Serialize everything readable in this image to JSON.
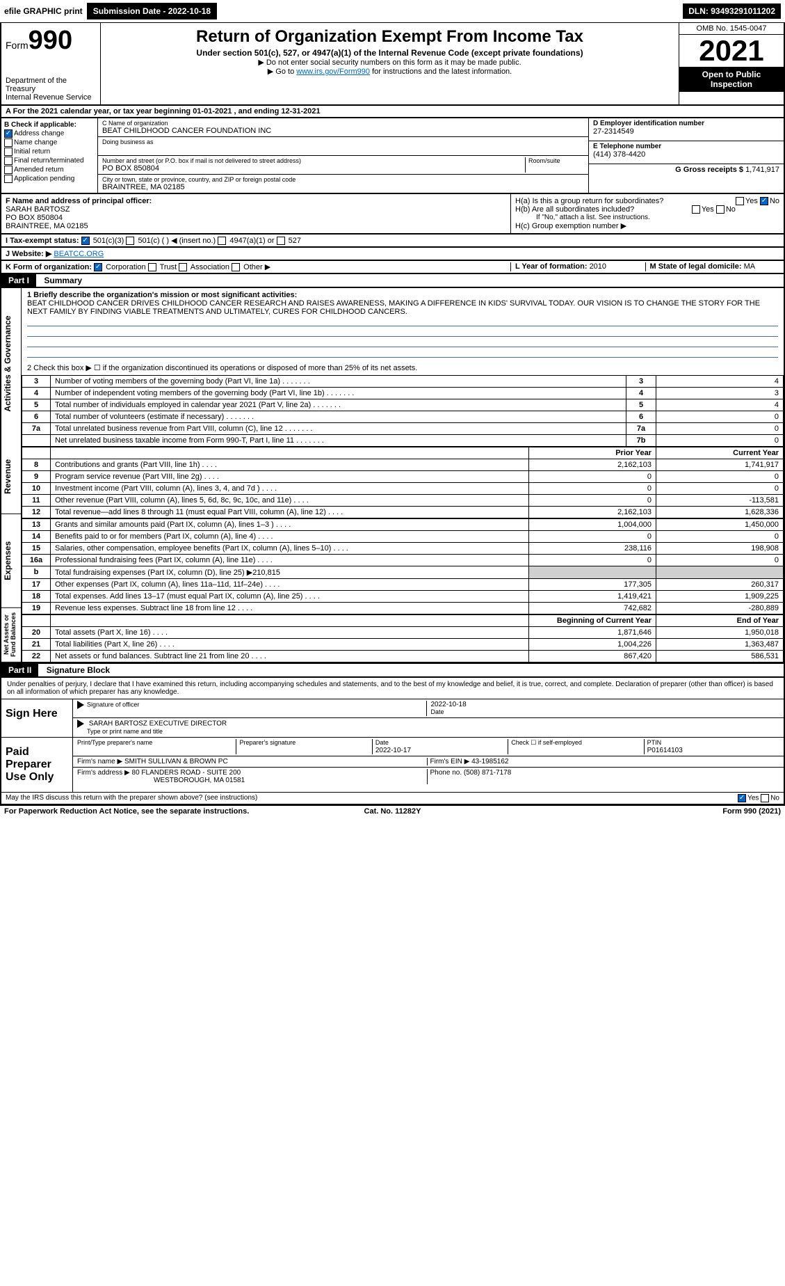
{
  "topbar": {
    "efile": "efile GRAPHIC print",
    "submission_label": "Submission Date - 2022-10-18",
    "dln": "DLN: 93493291011202"
  },
  "header": {
    "form_word": "Form",
    "form_num": "990",
    "dept": "Department of the Treasury",
    "irs": "Internal Revenue Service",
    "title": "Return of Organization Exempt From Income Tax",
    "sub": "Under section 501(c), 527, or 4947(a)(1) of the Internal Revenue Code (except private foundations)",
    "note1": "▶ Do not enter social security numbers on this form as it may be made public.",
    "note2_pre": "▶ Go to ",
    "note2_link": "www.irs.gov/Form990",
    "note2_post": " for instructions and the latest information.",
    "omb": "OMB No. 1545-0047",
    "year": "2021",
    "open": "Open to Public Inspection"
  },
  "line_a": "A For the 2021 calendar year, or tax year beginning 01-01-2021    , and ending 12-31-2021",
  "box_b": {
    "label": "B Check if applicable:",
    "items": [
      {
        "txt": "Address change",
        "checked": true
      },
      {
        "txt": "Name change",
        "checked": false
      },
      {
        "txt": "Initial return",
        "checked": false
      },
      {
        "txt": "Final return/terminated",
        "checked": false
      },
      {
        "txt": "Amended return",
        "checked": false
      },
      {
        "txt": "Application pending",
        "checked": false
      }
    ]
  },
  "box_c": {
    "name_lbl": "C Name of organization",
    "name": "BEAT CHILDHOOD CANCER FOUNDATION INC",
    "dba_lbl": "Doing business as",
    "dba": "",
    "addr_lbl": "Number and street (or P.O. box if mail is not delivered to street address)",
    "room_lbl": "Room/suite",
    "addr": "PO BOX 850804",
    "city_lbl": "City or town, state or province, country, and ZIP or foreign postal code",
    "city": "BRAINTREE, MA  02185"
  },
  "box_de": {
    "d_lbl": "D Employer identification number",
    "d_val": "27-2314549",
    "e_lbl": "E Telephone number",
    "e_val": "(414) 378-4420",
    "g_lbl": "G Gross receipts $ ",
    "g_val": "1,741,917"
  },
  "box_f": {
    "lbl": "F Name and address of principal officer:",
    "name": "SARAH BARTOSZ",
    "addr1": "PO BOX 850804",
    "addr2": "BRAINTREE, MA  02185"
  },
  "box_h": {
    "a_lbl": "H(a)  Is this a group return for subordinates?",
    "a_yes": "Yes",
    "a_no": "No",
    "b_lbl": "H(b)  Are all subordinates included?",
    "b_yes": "Yes",
    "b_no": "No",
    "b_note": "If \"No,\" attach a list. See instructions.",
    "c_lbl": "H(c)  Group exemption number ▶"
  },
  "row_i": {
    "lbl": "I  Tax-exempt status:",
    "opts": [
      "501(c)(3)",
      "501(c) (  ) ◀ (insert no.)",
      "4947(a)(1) or",
      "527"
    ]
  },
  "row_j": {
    "lbl": "J  Website: ▶",
    "val": " BEATCC.ORG"
  },
  "row_k": {
    "lbl": "K Form of organization:",
    "opts": [
      "Corporation",
      "Trust",
      "Association",
      "Other ▶"
    ],
    "l_lbl": "L Year of formation: ",
    "l_val": "2010",
    "m_lbl": "M State of legal domicile: ",
    "m_val": "MA"
  },
  "part1": {
    "hdr": "Part I",
    "title": "Summary",
    "q1": "1  Briefly describe the organization's mission or most significant activities:",
    "mission": "BEAT CHILDHOOD CANCER DRIVES CHILDHOOD CANCER RESEARCH AND RAISES AWARENESS, MAKING A DIFFERENCE IN KIDS' SURVIVAL TODAY. OUR VISION IS TO CHANGE THE STORY FOR THE NEXT FAMILY BY FINDING VIABLE TREATMENTS AND ULTIMATELY, CURES FOR CHILDHOOD CANCERS.",
    "q2": "2  Check this box ▶ ☐ if the organization discontinued its operations or disposed of more than 25% of its net assets.",
    "gov_rows": [
      {
        "n": "3",
        "d": "Number of voting members of the governing body (Part VI, line 1a)",
        "b": "3",
        "v": "4"
      },
      {
        "n": "4",
        "d": "Number of independent voting members of the governing body (Part VI, line 1b)",
        "b": "4",
        "v": "3"
      },
      {
        "n": "5",
        "d": "Total number of individuals employed in calendar year 2021 (Part V, line 2a)",
        "b": "5",
        "v": "4"
      },
      {
        "n": "6",
        "d": "Total number of volunteers (estimate if necessary)",
        "b": "6",
        "v": "0"
      },
      {
        "n": "7a",
        "d": "Total unrelated business revenue from Part VIII, column (C), line 12",
        "b": "7a",
        "v": "0"
      },
      {
        "n": "",
        "d": "Net unrelated business taxable income from Form 990-T, Part I, line 11",
        "b": "7b",
        "v": "0"
      }
    ],
    "py_hdr": "Prior Year",
    "cy_hdr": "Current Year",
    "rev_rows": [
      {
        "n": "8",
        "d": "Contributions and grants (Part VIII, line 1h)",
        "py": "2,162,103",
        "cy": "1,741,917"
      },
      {
        "n": "9",
        "d": "Program service revenue (Part VIII, line 2g)",
        "py": "0",
        "cy": "0"
      },
      {
        "n": "10",
        "d": "Investment income (Part VIII, column (A), lines 3, 4, and 7d )",
        "py": "0",
        "cy": "0"
      },
      {
        "n": "11",
        "d": "Other revenue (Part VIII, column (A), lines 5, 6d, 8c, 9c, 10c, and 11e)",
        "py": "0",
        "cy": "-113,581"
      },
      {
        "n": "12",
        "d": "Total revenue—add lines 8 through 11 (must equal Part VIII, column (A), line 12)",
        "py": "2,162,103",
        "cy": "1,628,336"
      }
    ],
    "exp_rows": [
      {
        "n": "13",
        "d": "Grants and similar amounts paid (Part IX, column (A), lines 1–3 )",
        "py": "1,004,000",
        "cy": "1,450,000"
      },
      {
        "n": "14",
        "d": "Benefits paid to or for members (Part IX, column (A), line 4)",
        "py": "0",
        "cy": "0"
      },
      {
        "n": "15",
        "d": "Salaries, other compensation, employee benefits (Part IX, column (A), lines 5–10)",
        "py": "238,116",
        "cy": "198,908"
      },
      {
        "n": "16a",
        "d": "Professional fundraising fees (Part IX, column (A), line 11e)",
        "py": "0",
        "cy": "0"
      },
      {
        "n": "b",
        "d": "Total fundraising expenses (Part IX, column (D), line 25) ▶210,815",
        "py": "",
        "cy": "",
        "shaded": true
      },
      {
        "n": "17",
        "d": "Other expenses (Part IX, column (A), lines 11a–11d, 11f–24e)",
        "py": "177,305",
        "cy": "260,317"
      },
      {
        "n": "18",
        "d": "Total expenses. Add lines 13–17 (must equal Part IX, column (A), line 25)",
        "py": "1,419,421",
        "cy": "1,909,225"
      },
      {
        "n": "19",
        "d": "Revenue less expenses. Subtract line 18 from line 12",
        "py": "742,682",
        "cy": "-280,889"
      }
    ],
    "boy_hdr": "Beginning of Current Year",
    "eoy_hdr": "End of Year",
    "net_rows": [
      {
        "n": "20",
        "d": "Total assets (Part X, line 16)",
        "py": "1,871,646",
        "cy": "1,950,018"
      },
      {
        "n": "21",
        "d": "Total liabilities (Part X, line 26)",
        "py": "1,004,226",
        "cy": "1,363,487"
      },
      {
        "n": "22",
        "d": "Net assets or fund balances. Subtract line 21 from line 20",
        "py": "867,420",
        "cy": "586,531"
      }
    ],
    "vtabs": [
      "Activities & Governance",
      "Revenue",
      "Expenses",
      "Net Assets or Fund Balances"
    ]
  },
  "part2": {
    "hdr": "Part II",
    "title": "Signature Block",
    "decl": "Under penalties of perjury, I declare that I have examined this return, including accompanying schedules and statements, and to the best of my knowledge and belief, it is true, correct, and complete. Declaration of preparer (other than officer) is based on all information of which preparer has any knowledge.",
    "sign_here": "Sign Here",
    "sig_officer_lbl": "Signature of officer",
    "sig_date_lbl": "Date",
    "sig_date": "2022-10-18",
    "officer_name": "SARAH BARTOSZ EXECUTIVE DIRECTOR",
    "officer_name_lbl": "Type or print name and title",
    "paid": "Paid Preparer Use Only",
    "prep_name_lbl": "Print/Type preparer's name",
    "prep_sig_lbl": "Preparer's signature",
    "prep_date_lbl": "Date",
    "prep_date": "2022-10-17",
    "self_emp": "Check ☐ if self-employed",
    "ptin_lbl": "PTIN",
    "ptin": "P01614103",
    "firm_name_lbl": "Firm's name      ▶",
    "firm_name": " SMITH SULLIVAN & BROWN PC",
    "firm_ein_lbl": "Firm's EIN ▶ ",
    "firm_ein": "43-1985162",
    "firm_addr_lbl": "Firm's address ▶ ",
    "firm_addr1": "80 FLANDERS ROAD - SUITE 200",
    "firm_addr2": "WESTBOROUGH, MA  01581",
    "phone_lbl": "Phone no. ",
    "phone": "(508) 871-7178",
    "discuss": "May the IRS discuss this return with the preparer shown above? (see instructions)",
    "discuss_yes": "Yes",
    "discuss_no": "No"
  },
  "footer": {
    "left": "For Paperwork Reduction Act Notice, see the separate instructions.",
    "mid": "Cat. No. 11282Y",
    "right": "Form 990 (2021)"
  },
  "colors": {
    "black": "#000000",
    "link": "#0066cc",
    "shade": "#d0d0d0",
    "rule": "#4a6aa5"
  }
}
